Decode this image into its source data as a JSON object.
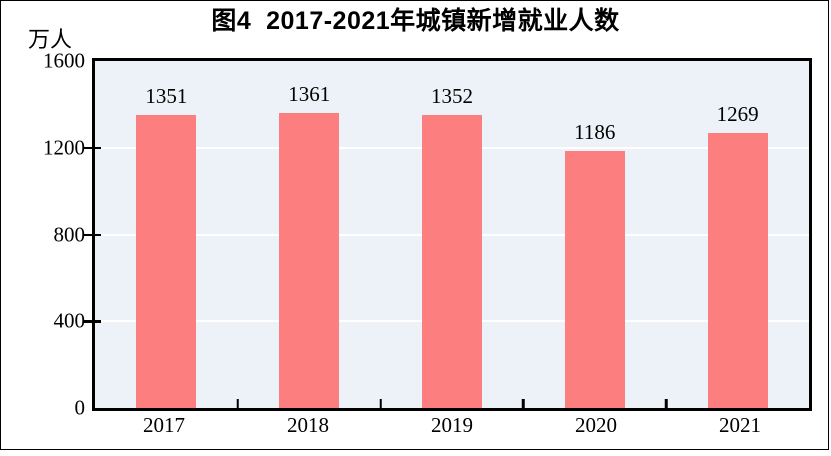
{
  "figure": {
    "title": "图4  2017-2021年城镇新增就业人数",
    "unit_label": "万人"
  },
  "chart_data": {
    "type": "bar",
    "title": "图4 2017-2021年城镇新增就业人数",
    "ylabel": "万人",
    "xlabel": "",
    "categories": [
      "2017",
      "2018",
      "2019",
      "2020",
      "2021"
    ],
    "values": [
      1351,
      1361,
      1352,
      1186,
      1269
    ],
    "ylim": [
      0,
      1600
    ],
    "yticks": [
      0,
      400,
      800,
      1200,
      1600
    ],
    "grid": true,
    "legend": "none",
    "bar_color": "#fc7e7e",
    "plot_bg_color": "#ecf2f7",
    "gridline_color": "#ffffff",
    "axis_color": "#000000",
    "text_color": "#000000"
  }
}
